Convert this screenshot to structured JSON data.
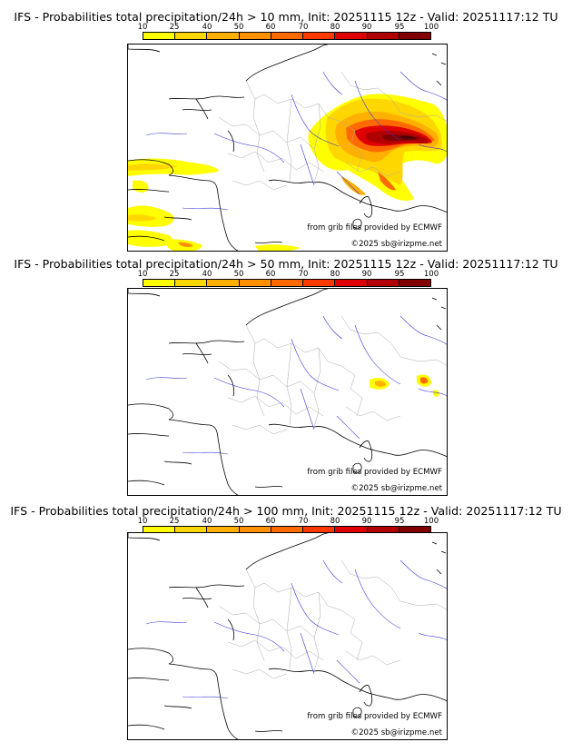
{
  "colorbar": {
    "ticks": [
      "10",
      "25",
      "40",
      "50",
      "60",
      "70",
      "80",
      "90",
      "95",
      "100"
    ],
    "colors": [
      "#ffff00",
      "#ffd700",
      "#ffb000",
      "#ff9000",
      "#ff6a00",
      "#ff3a00",
      "#e00000",
      "#b00000",
      "#800000",
      "#500000"
    ]
  },
  "panels": [
    {
      "title": "IFS - Probabilities total precipitation/24h > 10 mm, Init: 20251115 12z - Valid: 20251117:12 TU"
    },
    {
      "title": "IFS - Probabilities total precipitation/24h > 50 mm, Init: 20251115 12z - Valid: 20251117:12 TU"
    },
    {
      "title": "IFS - Probabilities total precipitation/24h > 100 mm, Init: 20251115 12z - Valid: 20251117:12 TU"
    }
  ],
  "credits": {
    "source": "from grib files provided by ECMWF",
    "copyright": "©2025 sb@irizpme.net"
  }
}
